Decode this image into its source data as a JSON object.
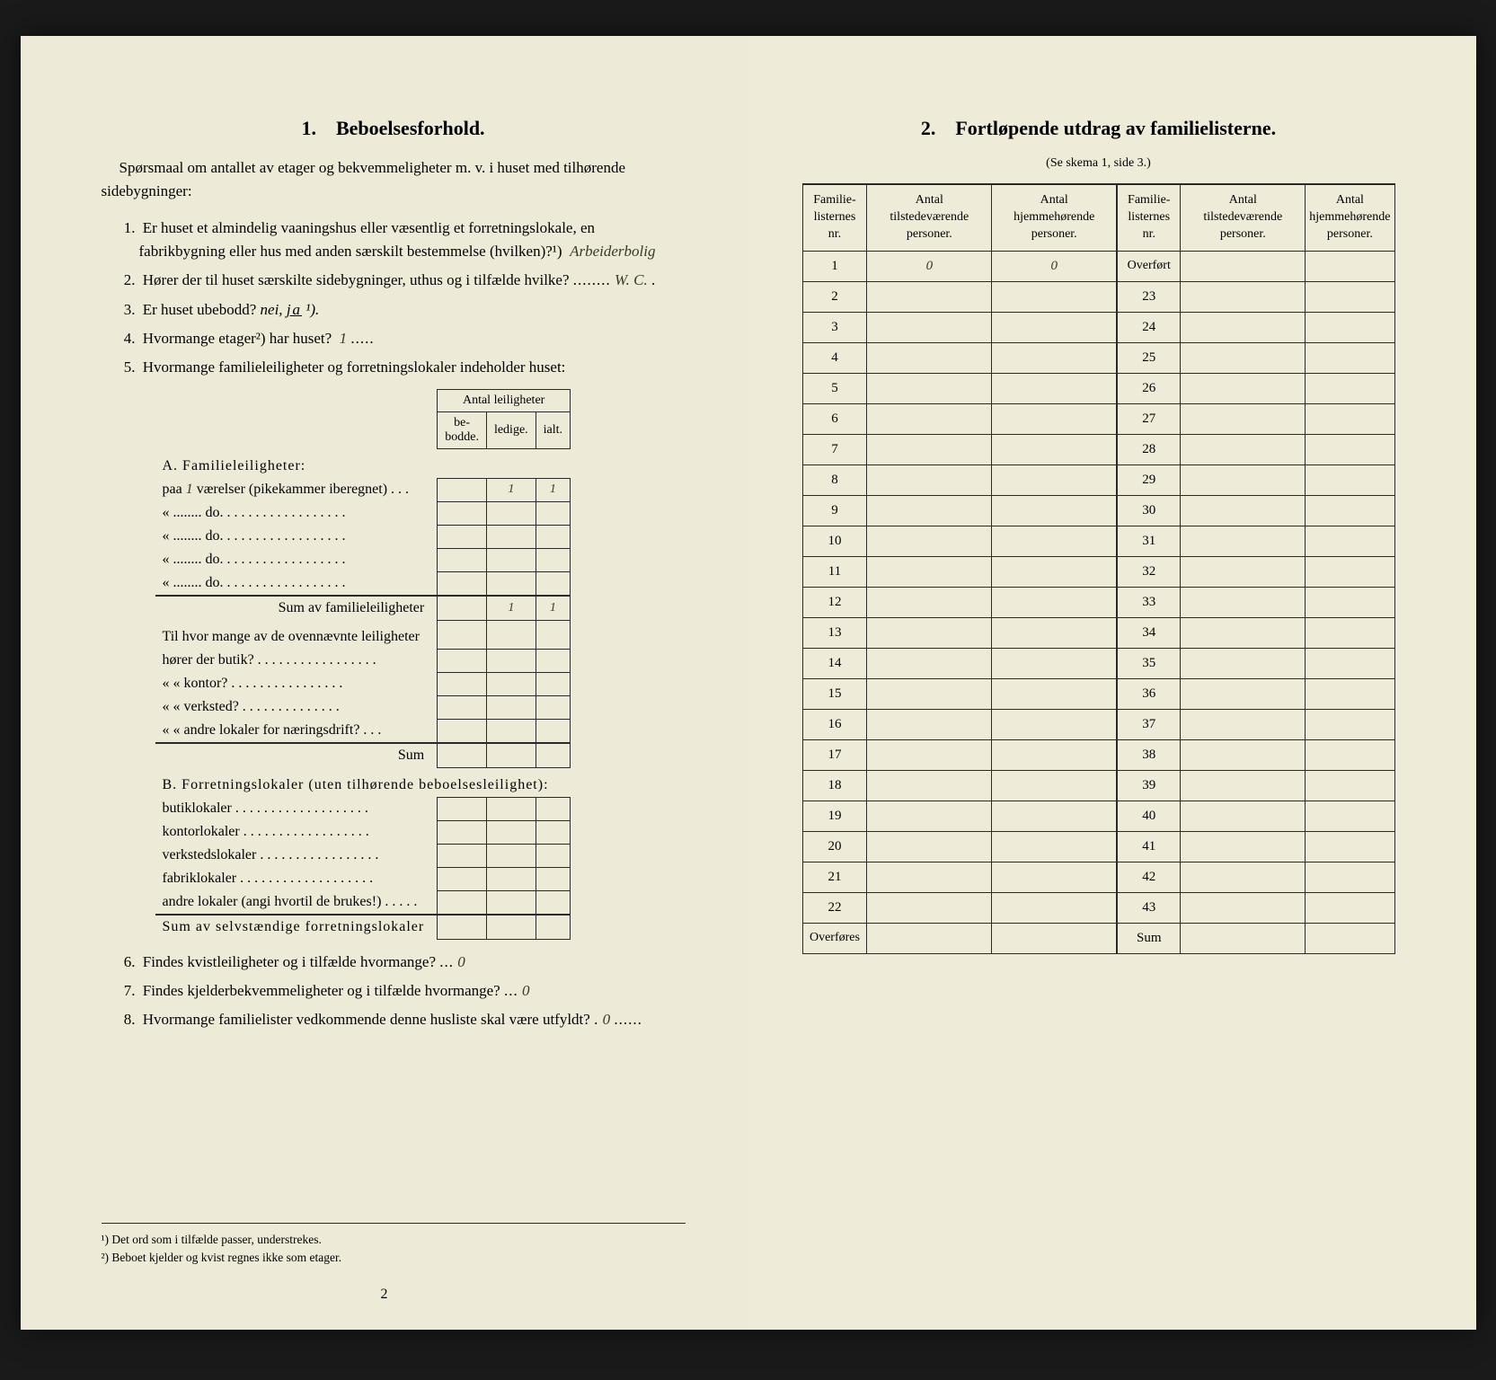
{
  "left": {
    "title_num": "1.",
    "title": "Beboelsesforhold.",
    "intro": "Spørsmaal om antallet av etager og bekvemmeligheter m. v. i huset med tilhørende sidebygninger:",
    "q1_num": "1.",
    "q1": "Er huset et almindelig vaaningshus eller væsentlig et forretningslokale, en fabrikbygning eller hus med anden særskilt bestemmelse (hvilken)?¹)",
    "q1_fill": "Arbeiderbolig",
    "q2_num": "2.",
    "q2": "Hører der til huset særskilte sidebygninger, uthus og i tilfælde hvilke?",
    "q2_fill": "W. C.",
    "q3_num": "3.",
    "q3_a": "Er huset ubebodd?  ",
    "q3_b": "nei, ",
    "q3_c": "ja",
    "q3_d": " ¹).",
    "q4_num": "4.",
    "q4": "Hvormange etager²) har huset?",
    "q4_fill": "1",
    "q5_num": "5.",
    "q5": "Hvormange familieleiligheter og forretningslokaler indeholder huset:",
    "tab_head_span": "Antal leiligheter",
    "tab_h1": "be-\nbodde.",
    "tab_h2": "ledige.",
    "tab_h3": "ialt.",
    "secA": "A. Familieleiligheter:",
    "rowA1_a": "paa ",
    "rowA1_fill": "1",
    "rowA1_b": " værelser (pikekammer iberegnet) . . .",
    "rowDo": "«   ........   do.   . . . . . . . . . . . . . . . . .",
    "rowA_v2": "1",
    "rowA_v3": "1",
    "rowSumA": "Sum av familieleiligheter",
    "rowSumA_v2": "1",
    "rowSumA_v3": "1",
    "rowQb": "Til hvor mange av de ovennævnte leiligheter",
    "rowQb1": "hører der butik? . . . . . . . . . . . . . . . . .",
    "rowQb2": "«     «   kontor? . . . . . . . . . . . . . . . .",
    "rowQb3": "«     «   verksted? . . . . . . . . . . . . . .",
    "rowQb4": "«     «   andre lokaler for næringsdrift? . . .",
    "rowQb_sum": "Sum",
    "secB": "B. Forretningslokaler (uten tilhørende beboelsesleilighet):",
    "rowB1": "butiklokaler . . . . . . . . . . . . . . . . . . .",
    "rowB2": "kontorlokaler  . . . . . . . . . . . . . . . . . .",
    "rowB3": "verkstedslokaler . . . . . . . . . . . . . . . . .",
    "rowB4": "fabriklokaler . . . . . . . . . . . . . . . . . . .",
    "rowB5": "andre lokaler (angi hvortil de brukes!) . . . . .",
    "rowSumB": "Sum av selvstændige forretningslokaler",
    "q6_num": "6.",
    "q6": "Findes kvistleiligheter og i tilfælde hvormange?",
    "q6_fill": "0",
    "q7_num": "7.",
    "q7": "Findes kjelderbekvemmeligheter og i tilfælde hvormange?",
    "q7_fill": "0",
    "q8_num": "8.",
    "q8": "Hvormange familielister vedkommende denne husliste skal være utfyldt?",
    "q8_fill": "0",
    "fn1": "¹) Det ord som i tilfælde passer, understrekes.",
    "fn2": "²) Beboet kjelder og kvist regnes ikke som etager.",
    "pagenum": "2"
  },
  "right": {
    "title_num": "2.",
    "title": "Fortløpende utdrag av familielisterne.",
    "subtitle": "(Se skema 1, side 3.)",
    "h1": "Familie-\nlisternes\nnr.",
    "h2": "Antal\ntilstedeværende\npersoner.",
    "h3": "Antal\nhjemmehørende\npersoner.",
    "row1_v2": "0",
    "row1_v3": "0",
    "overfort": "Overført",
    "left_nums": [
      "1",
      "2",
      "3",
      "4",
      "5",
      "6",
      "7",
      "8",
      "9",
      "10",
      "11",
      "12",
      "13",
      "14",
      "15",
      "16",
      "17",
      "18",
      "19",
      "20",
      "21",
      "22"
    ],
    "right_nums": [
      "23",
      "24",
      "25",
      "26",
      "27",
      "28",
      "29",
      "30",
      "31",
      "32",
      "33",
      "34",
      "35",
      "36",
      "37",
      "38",
      "39",
      "40",
      "41",
      "42",
      "43"
    ],
    "overfores": "Overføres",
    "sum": "Sum"
  }
}
